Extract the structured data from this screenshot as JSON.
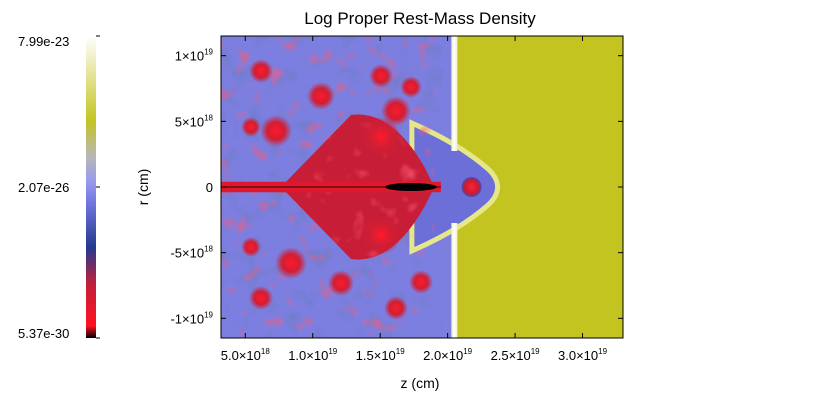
{
  "chart_data": {
    "type": "heatmap",
    "title": "Log Proper Rest-Mass Density",
    "xlabel": "z (cm)",
    "ylabel": "r (cm)",
    "xlim": [
      3.2e+18,
      3.3e+19
    ],
    "ylim": [
      -1.15e+19,
      1.15e+19
    ],
    "x_ticks": [
      {
        "value": 5e+18,
        "label": "5.0×10",
        "exp": "18"
      },
      {
        "value": 1e+19,
        "label": "1.0×10",
        "exp": "19"
      },
      {
        "value": 1.5e+19,
        "label": "1.5×10",
        "exp": "19"
      },
      {
        "value": 2e+19,
        "label": "2.0×10",
        "exp": "19"
      },
      {
        "value": 2.5e+19,
        "label": "2.5×10",
        "exp": "19"
      },
      {
        "value": 3e+19,
        "label": "3.0×10",
        "exp": "19"
      }
    ],
    "y_ticks": [
      {
        "value": 1e+19,
        "label": "1×10",
        "exp": "19"
      },
      {
        "value": 5e+18,
        "label": "5×10",
        "exp": "18"
      },
      {
        "value": 0,
        "label": "0",
        "exp": ""
      },
      {
        "value": -5e+18,
        "label": "-5×10",
        "exp": "18"
      },
      {
        "value": -1e+19,
        "label": "-1×10",
        "exp": "19"
      }
    ],
    "colorbar": {
      "max_label": "7.99e-23",
      "mid_label": "2.07e-26",
      "min_label": "5.37e-30",
      "log_max": -22.097,
      "log_mid": -25.684,
      "log_min": -29.27,
      "colors": [
        "#000000",
        "#ff1122",
        "#c0203a",
        "#233a8f",
        "#7277e0",
        "#9a9aef",
        "#b7b7b7",
        "#c4c421",
        "#ffffff"
      ]
    },
    "features": {
      "ambient_color": "#c4c421",
      "cocoon_color": "#7d7fe0",
      "shock_front_z": 2.05e+19,
      "bow_shock_tip_z": 2.4e+19,
      "jet_half_width_r": 4e+17,
      "jet_hotspot_z": 1.95e+19
    }
  }
}
